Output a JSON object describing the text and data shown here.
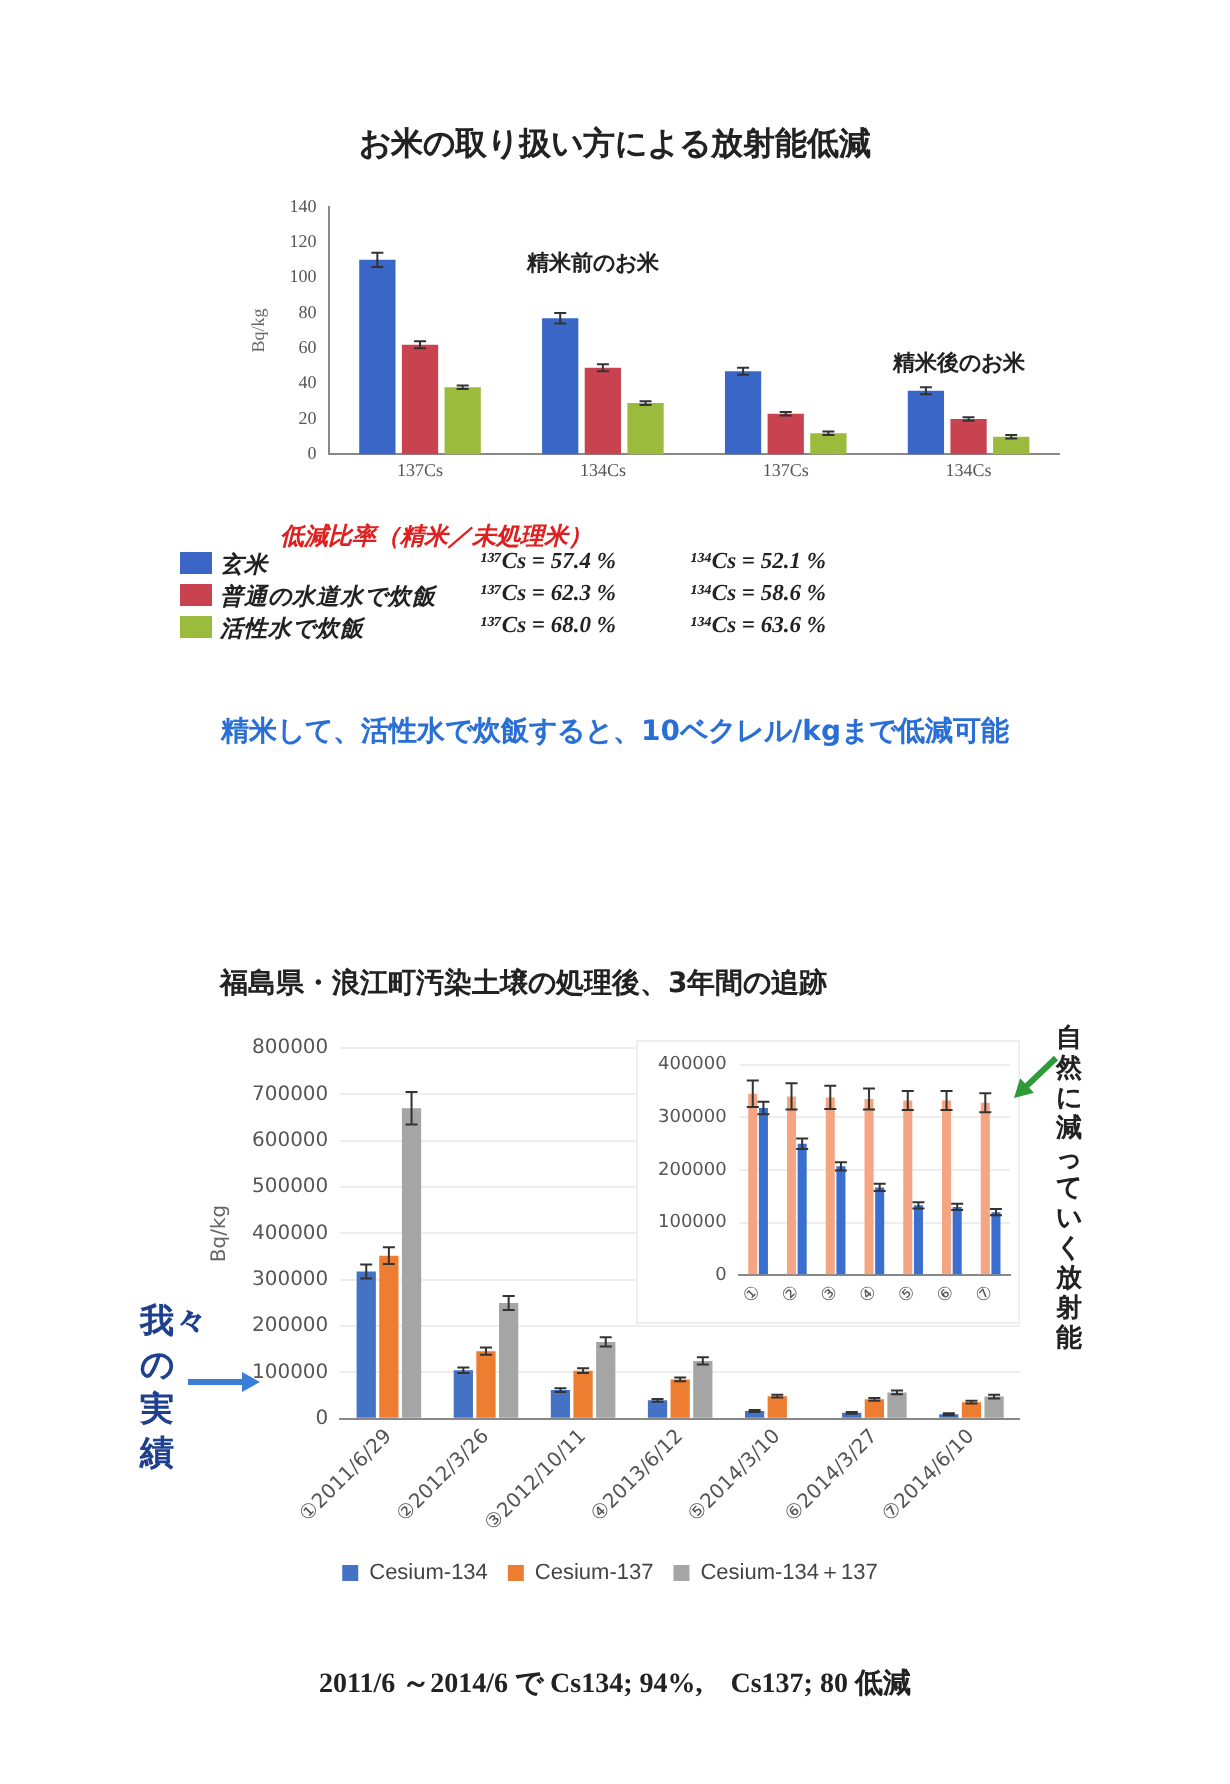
{
  "chart_data": [
    {
      "type": "bar",
      "title": "お米の取り扱い方による放射能低減",
      "ylabel": "Bq/kg",
      "categories": [
        "137Cs",
        "134Cs",
        "137Cs",
        "134Cs"
      ],
      "series": [
        {
          "name": "玄米",
          "color": "#3a66c8",
          "values": [
            110,
            77,
            47,
            36
          ],
          "errors": [
            4,
            3,
            2,
            2
          ]
        },
        {
          "name": "普通の水道水で炊飯",
          "color": "#c8434f",
          "values": [
            62,
            49,
            23,
            20
          ],
          "errors": [
            2,
            2,
            1,
            1
          ]
        },
        {
          "name": "活性水で炊飯",
          "color": "#9bbb3c",
          "values": [
            38,
            29,
            12,
            10
          ],
          "errors": [
            1,
            1,
            1,
            1
          ]
        }
      ],
      "ylim": [
        0,
        140
      ],
      "yticks": [
        0,
        20,
        40,
        60,
        80,
        100,
        120,
        140
      ],
      "grid": false,
      "legend": "bottom left",
      "annotations": [
        "精米前のお米",
        "精米後のお米",
        "低減比率（精米／未処理米）",
        "¹³⁷Cs = 57.4 %",
        "¹³⁴Cs = 52.1 %",
        "¹³⁷Cs = 62.3 %",
        "¹³⁴Cs = 58.6 %",
        "¹³⁷Cs = 68.0 %",
        "¹³⁴Cs = 63.6 %",
        "精米して、活性水で炊飯すると、10ベクレル/kgまで低減可能"
      ]
    },
    {
      "type": "bar",
      "title": "福島県・浪江町汚染土壌の処理後、3年間の追跡",
      "ylabel": "Bq/kg",
      "categories": [
        "①2011/6/29",
        "②2012/3/26",
        "③2012/10/11",
        "④2013/6/12",
        "⑤2014/3/10",
        "⑥2014/3/27",
        "⑦2014/6/10"
      ],
      "series": [
        {
          "name": "Cesium-134",
          "color": "#4472c4",
          "values": [
            318000,
            105000,
            62000,
            40000,
            17000,
            13000,
            10000
          ],
          "errors": [
            15000,
            6000,
            4000,
            3000,
            2000,
            2000,
            2000
          ]
        },
        {
          "name": "Cesium-137",
          "color": "#ed7d31",
          "values": [
            352000,
            146000,
            104000,
            85000,
            49000,
            42000,
            36000
          ],
          "errors": [
            18000,
            8000,
            5000,
            4000,
            3000,
            3000,
            3000
          ]
        },
        {
          "name": "Cesium-134＋137",
          "color": "#a5a5a5",
          "values": [
            670000,
            250000,
            166000,
            125000,
            null,
            57000,
            48000
          ],
          "errors": [
            35000,
            15000,
            10000,
            8000,
            null,
            4000,
            4000
          ]
        }
      ],
      "ylim": [
        0,
        800000
      ],
      "yticks": [
        0,
        100000,
        200000,
        300000,
        400000,
        500000,
        600000,
        700000,
        800000
      ],
      "grid": "y",
      "legend": "bottom",
      "annotations": [
        "我々の実績",
        "2011/6 ～2014/6 で Cs134; 94%,　Cs137; 80 低減"
      ]
    },
    {
      "type": "bar",
      "categories": [
        "①",
        "②",
        "③",
        "④",
        "⑤",
        "⑥",
        "⑦"
      ],
      "series": [
        {
          "color": "#f4a582",
          "values": [
            345000,
            340000,
            338000,
            335000,
            332000,
            332000,
            328000
          ],
          "errors": [
            25000,
            25000,
            22000,
            20000,
            18000,
            18000,
            18000
          ]
        },
        {
          "color": "#3a6fd0",
          "values": [
            318000,
            250000,
            207000,
            167000,
            133000,
            130000,
            120000
          ],
          "errors": [
            12000,
            10000,
            8000,
            7000,
            6000,
            6000,
            6000
          ]
        }
      ],
      "ylim": [
        0,
        400000
      ],
      "yticks": [
        0,
        100000,
        200000,
        300000,
        400000
      ],
      "grid": "y",
      "annotations": [
        "自然に減っていく放射能"
      ]
    }
  ]
}
